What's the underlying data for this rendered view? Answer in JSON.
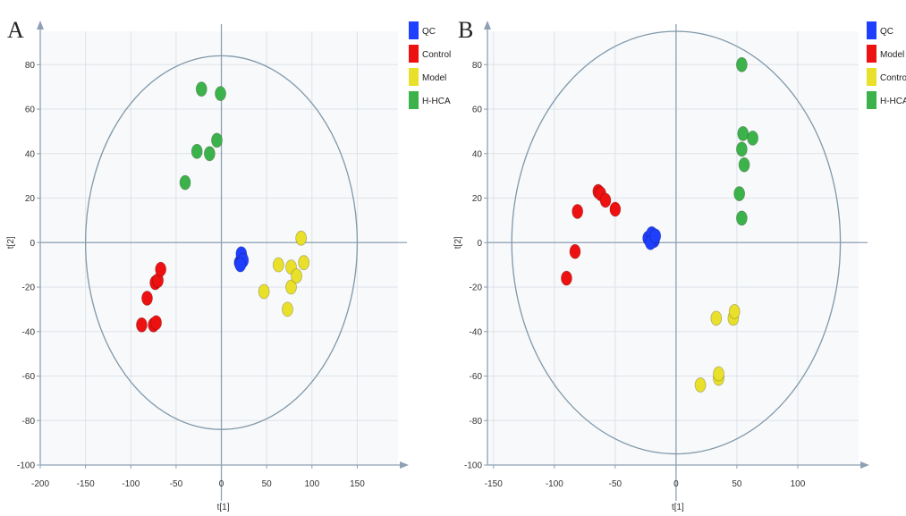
{
  "chart_data": [
    {
      "type": "scatter",
      "panel_label": "A",
      "xlabel": "t[1]",
      "ylabel": "t[2]",
      "xlim": [
        -200,
        195
      ],
      "ylim": [
        -100,
        95
      ],
      "xticks": [
        -200,
        -150,
        -100,
        -50,
        0,
        50,
        100,
        150
      ],
      "yticks": [
        -100,
        -80,
        -60,
        -40,
        -20,
        0,
        20,
        40,
        60,
        80
      ],
      "grid": true,
      "ellipse": {
        "cx": 0,
        "cy": 0,
        "rx": 150,
        "ry": 84
      },
      "legend_position": "top-right",
      "series": [
        {
          "name": "QC",
          "color": "#1f3fff",
          "points": [
            [
              20,
              -9
            ],
            [
              23,
              -7
            ],
            [
              22,
              -5
            ],
            [
              24,
              -8
            ],
            [
              21,
              -10
            ]
          ]
        },
        {
          "name": "Control",
          "color": "#ee1111",
          "points": [
            [
              -88,
              -37
            ],
            [
              -82,
              -25
            ],
            [
              -75,
              -37
            ],
            [
              -72,
              -36
            ],
            [
              -73,
              -18
            ],
            [
              -70,
              -17
            ],
            [
              -67,
              -12
            ]
          ]
        },
        {
          "name": "Model",
          "color": "#e8e02a",
          "points": [
            [
              47,
              -22
            ],
            [
              63,
              -10
            ],
            [
              73,
              -30
            ],
            [
              77,
              -20
            ],
            [
              77,
              -11
            ],
            [
              83,
              -15
            ],
            [
              88,
              2
            ],
            [
              91,
              -9
            ]
          ]
        },
        {
          "name": "H-HCA",
          "color": "#3cb34a",
          "points": [
            [
              -40,
              27
            ],
            [
              -27,
              41
            ],
            [
              -13,
              40
            ],
            [
              -5,
              46
            ],
            [
              -22,
              69
            ],
            [
              -1,
              67
            ]
          ]
        }
      ]
    },
    {
      "type": "scatter",
      "panel_label": "B",
      "xlabel": "t[1]",
      "ylabel": "t[2]",
      "xlim": [
        -155,
        150
      ],
      "ylim": [
        -100,
        95
      ],
      "xticks": [
        -150,
        -100,
        -50,
        0,
        50,
        100
      ],
      "yticks": [
        -100,
        -80,
        -60,
        -40,
        -20,
        0,
        20,
        40,
        60,
        80
      ],
      "grid": true,
      "ellipse": {
        "cx": 0,
        "cy": 0,
        "rx": 135,
        "ry": 95
      },
      "legend_position": "top-right",
      "series": [
        {
          "name": "QC",
          "color": "#1f3fff",
          "points": [
            [
              -23,
              2
            ],
            [
              -20,
              4
            ],
            [
              -18,
              1
            ],
            [
              -21,
              0
            ],
            [
              -17,
              3
            ]
          ]
        },
        {
          "name": "Model",
          "color": "#ee1111",
          "points": [
            [
              -90,
              -16
            ],
            [
              -83,
              -4
            ],
            [
              -81,
              14
            ],
            [
              -64,
              23
            ],
            [
              -62,
              22
            ],
            [
              -58,
              19
            ],
            [
              -50,
              15
            ]
          ]
        },
        {
          "name": "Control",
          "color": "#e8e02a",
          "points": [
            [
              20,
              -64
            ],
            [
              33,
              -34
            ],
            [
              35,
              -61
            ],
            [
              35,
              -59
            ],
            [
              47,
              -34
            ],
            [
              48,
              -31
            ]
          ]
        },
        {
          "name": "H-HCA",
          "color": "#3cb34a",
          "points": [
            [
              52,
              22
            ],
            [
              54,
              11
            ],
            [
              54,
              42
            ],
            [
              55,
              49
            ],
            [
              56,
              35
            ],
            [
              63,
              47
            ],
            [
              54,
              80
            ]
          ]
        }
      ]
    }
  ]
}
